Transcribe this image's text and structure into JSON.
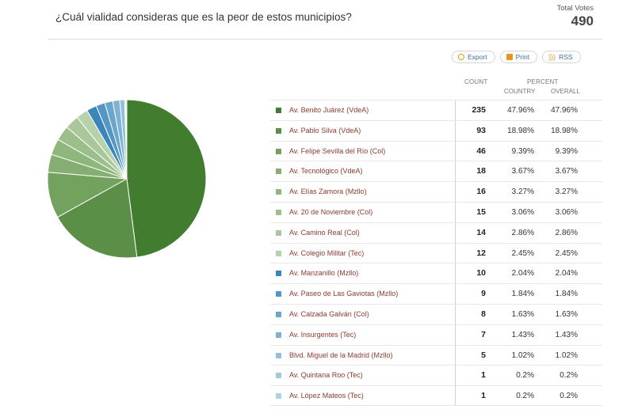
{
  "question": "¿Cuál vialidad consideras que es la peor de estos municipios?",
  "total_votes_label": "Total Votes",
  "total_votes": "490",
  "actions": {
    "export": {
      "label": "Export",
      "icon": "export-icon"
    },
    "print": {
      "label": "Print",
      "icon": "print-icon"
    },
    "rss": {
      "label": "RSS",
      "icon": "rss-icon"
    }
  },
  "columns": {
    "count": "COUNT",
    "percent": "PERCENT",
    "country": "COUNTRY",
    "overall": "OVERALL"
  },
  "chart_data": {
    "type": "pie",
    "categories": [
      "Av. Benito Juárez (VdeA)",
      "Av. Pablo Silva (VdeA)",
      "Av. Felipe Sevilla del Río (Col)",
      "Av. Tecnológico (VdeA)",
      "Av. Elías Zamora (Mzllo)",
      "Av. 20 de Noviembre (Col)",
      "Av. Camino Real (Col)",
      "Av. Colegio Militar (Tec)",
      "Av. Manzanillo (Mzllo)",
      "Av. Paseo de Las Gaviotas (Mzllo)",
      "Av. Calzada Galván (Col)",
      "Av. Insurgentes (Tec)",
      "Blvd. Miguel de la Madrid (Mzllo)",
      "Av. Quintana Roo (Tec)",
      "Av. López Mateos (Tec)"
    ],
    "values": [
      235,
      93,
      46,
      18,
      16,
      15,
      14,
      12,
      10,
      9,
      8,
      7,
      5,
      1,
      1
    ],
    "country_percent": [
      "47.96%",
      "18.98%",
      "9.39%",
      "3.67%",
      "3.27%",
      "3.06%",
      "2.86%",
      "2.45%",
      "2.04%",
      "1.84%",
      "1.63%",
      "1.43%",
      "1.02%",
      "0.2%",
      "0.2%"
    ],
    "overall_percent": [
      "47.96%",
      "18.98%",
      "9.39%",
      "3.67%",
      "3.27%",
      "3.06%",
      "2.86%",
      "2.45%",
      "2.04%",
      "1.84%",
      "1.63%",
      "1.43%",
      "1.02%",
      "0.2%",
      "0.2%"
    ],
    "colors": [
      "#427c2e",
      "#5b8f48",
      "#73a15e",
      "#86ae72",
      "#8fb67c",
      "#9bbe8a",
      "#a9c79a",
      "#b7d1aa",
      "#3a86b8",
      "#5597c4",
      "#6aa5cc",
      "#7eb2d4",
      "#92bfdc",
      "#a3c9e1",
      "#b0d1e6"
    ]
  }
}
